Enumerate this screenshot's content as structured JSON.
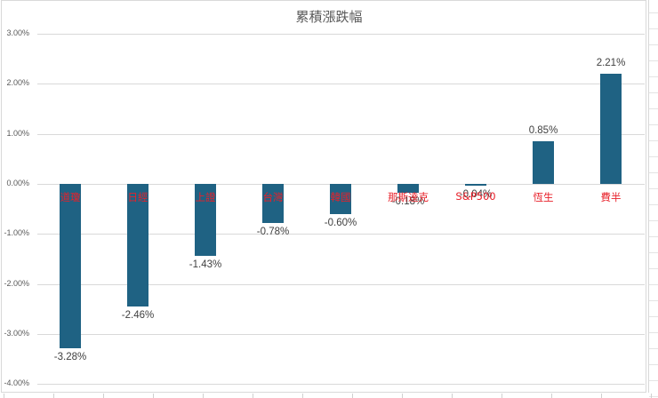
{
  "chart_data": {
    "type": "bar",
    "title": "累積漲跌幅",
    "xlabel": "",
    "ylabel": "",
    "categories": [
      "道瓊",
      "日經",
      "上證",
      "台灣",
      "韓國",
      "那斯達克",
      "S&P500",
      "恆生",
      "費半"
    ],
    "values": [
      -3.28,
      -2.46,
      -1.43,
      -0.78,
      -0.6,
      -0.18,
      -0.04,
      0.85,
      2.21
    ],
    "value_labels": [
      "-3.28%",
      "-2.46%",
      "-1.43%",
      "-0.78%",
      "-0.60%",
      "-0.18%",
      "-0.04%",
      "0.85%",
      "2.21%"
    ],
    "ylim": [
      -4.0,
      3.0
    ],
    "yticks": [
      "3.00%",
      "2.00%",
      "1.00%",
      "0.00%",
      "-1.00%",
      "-2.00%",
      "-3.00%",
      "-4.00%"
    ],
    "ytick_values": [
      3,
      2,
      1,
      0,
      -1,
      -2,
      -3,
      -4
    ],
    "grid": true,
    "legend": null,
    "colors": {
      "bar": "#1f6283",
      "category_label": "#e8202a",
      "value_label": "#404040",
      "gridline": "#d9d9d9",
      "title": "#595959"
    }
  }
}
